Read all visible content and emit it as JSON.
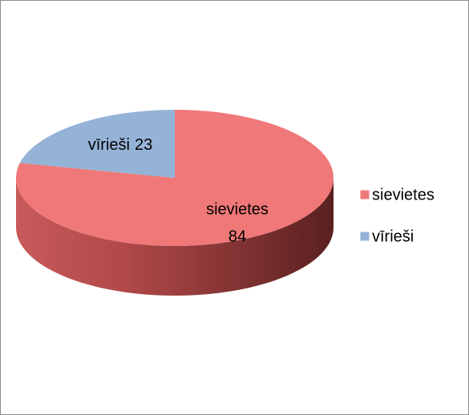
{
  "chart_data": {
    "type": "pie",
    "categories": [
      "sievietes",
      "vīrieši"
    ],
    "values": [
      84,
      23
    ],
    "colors": [
      "#f07878",
      "#95b3d7"
    ],
    "legend": "right"
  }
}
